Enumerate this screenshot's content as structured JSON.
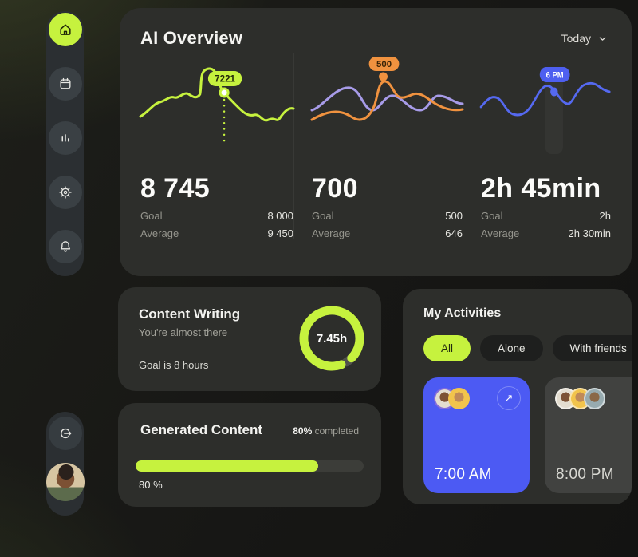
{
  "colors": {
    "accent": "#c6f23e",
    "orange": "#f0923f",
    "purple": "#a79be8",
    "blue": "#5569f0",
    "tile_blue": "#4c5af3"
  },
  "icons": {
    "open_arrow": "↗"
  },
  "header": {
    "title": "AI Overview",
    "period": "Today"
  },
  "stats": [
    {
      "tooltip": "7221",
      "value": "8 745",
      "goal_label": "Goal",
      "goal_value": "8 000",
      "avg_label": "Average",
      "avg_value": "9 450"
    },
    {
      "tooltip": "500",
      "value": "700",
      "goal_label": "Goal",
      "goal_value": "500",
      "avg_label": "Average",
      "avg_value": "646"
    },
    {
      "tooltip": "6 PM",
      "value": "2h 45min",
      "goal_label": "Goal",
      "goal_value": "2h",
      "avg_label": "Average",
      "avg_value": "2h 30min"
    }
  ],
  "content_writing": {
    "title": "Content Writing",
    "subtitle": "You're almost there",
    "goal": "Goal is 8 hours",
    "ring_label": "7.45h",
    "progress_percent": 93
  },
  "activities": {
    "title": "My Activities",
    "tabs": [
      {
        "label": "All",
        "active": true
      },
      {
        "label": "Alone",
        "active": false
      },
      {
        "label": "With friends",
        "active": false
      }
    ],
    "items": [
      {
        "time": "7:00 AM"
      },
      {
        "time": "8:00 PM"
      }
    ]
  },
  "generated_content": {
    "title": "Generated Content",
    "completed_value": "80%",
    "completed_text": "completed",
    "bar_percent": 80,
    "bar_label": "80 %"
  }
}
